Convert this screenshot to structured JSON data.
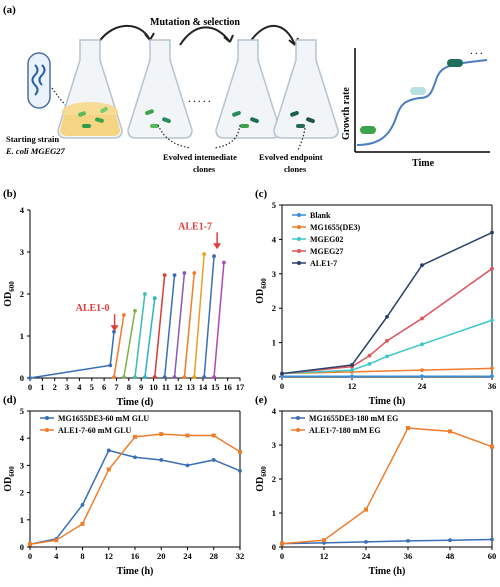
{
  "figure": {
    "panel_a": {
      "label": "(a)",
      "title": "Mutation & selection",
      "starting_strain_line1": "Starting strain",
      "starting_strain_line2": "E. coli MGEG27",
      "evolved_intermediate_line1": "Evolved intemediate",
      "evolved_intermediate_line2": "clones",
      "evolved_endpoint_line1": "Evolved endpoint",
      "evolved_endpoint_line2": "clones",
      "dots": "· · · · ·",
      "inset_ylabel": "Growth rate",
      "inset_xlabel": "Time",
      "inset_dots": "· · ·"
    },
    "colors": {
      "blue": "#3a6fb5",
      "orange": "#ef7d2b",
      "red": "#d93b3b",
      "teal": "#3cbfae",
      "pink": "#e0525a",
      "navy": "#27406d",
      "arrow_red": "#e23b3b"
    }
  },
  "chart_data": [
    {
      "panel": "(b)",
      "type": "line",
      "xlabel": "Time (d)",
      "ylabel": "OD600",
      "xlim": [
        0,
        17
      ],
      "ylim": [
        0,
        4
      ],
      "xticks": [
        0,
        1,
        2,
        3,
        4,
        5,
        6,
        7,
        8,
        9,
        10,
        11,
        12,
        13,
        14,
        15,
        16,
        17
      ],
      "yticks": [
        0,
        1,
        2,
        3,
        4
      ],
      "annotations": [
        {
          "text": "ALE1-0",
          "x": 6.2,
          "y": 1.4
        },
        {
          "text": "ALE1-7",
          "x": 14.5,
          "y": 3.35
        }
      ],
      "series": [
        {
          "color": "#3a6fb5",
          "x": [
            0,
            6.5,
            6.8
          ],
          "y": [
            0,
            0.3,
            1.1
          ]
        },
        {
          "color": "#ef7d2b",
          "x": [
            6.8,
            7.6
          ],
          "y": [
            0.02,
            1.5
          ]
        },
        {
          "color": "#7fb04a",
          "x": [
            7.6,
            8.5
          ],
          "y": [
            0.02,
            1.6
          ]
        },
        {
          "color": "#3cbfae",
          "x": [
            8.5,
            9.3
          ],
          "y": [
            0.02,
            2.0
          ]
        },
        {
          "color": "#2bb3c9",
          "x": [
            9.3,
            10.1
          ],
          "y": [
            0.02,
            1.9
          ]
        },
        {
          "color": "#d93b3b",
          "x": [
            10.1,
            10.9
          ],
          "y": [
            0.02,
            2.45
          ]
        },
        {
          "color": "#3a6fb5",
          "x": [
            10.9,
            11.7
          ],
          "y": [
            0.02,
            2.45
          ]
        },
        {
          "color": "#8a5ab0",
          "x": [
            11.7,
            12.5
          ],
          "y": [
            0.02,
            2.5
          ]
        },
        {
          "color": "#ef7d2b",
          "x": [
            12.5,
            13.3
          ],
          "y": [
            0.02,
            2.5
          ]
        },
        {
          "color": "#e8a020",
          "x": [
            13.3,
            14.1
          ],
          "y": [
            0.02,
            2.95
          ]
        },
        {
          "color": "#3a6fb5",
          "x": [
            14.1,
            14.9
          ],
          "y": [
            0.02,
            2.9
          ]
        },
        {
          "color": "#b04ab0",
          "x": [
            14.9,
            15.7
          ],
          "y": [
            0.02,
            2.75
          ]
        }
      ]
    },
    {
      "panel": "(c)",
      "type": "line",
      "xlabel": "Time (h)",
      "ylabel": "OD600",
      "xlim": [
        0,
        36
      ],
      "ylim": [
        0,
        5
      ],
      "xticks": [
        0,
        12,
        24,
        36
      ],
      "yticks": [
        0,
        1,
        2,
        3,
        4,
        5
      ],
      "series": [
        {
          "name": "Blank",
          "color": "#3a8fd9",
          "x": [
            0,
            12,
            24,
            36
          ],
          "y": [
            0.02,
            0.02,
            0.02,
            0.02
          ]
        },
        {
          "name": "MG1655(DE3)",
          "color": "#ef7d2b",
          "x": [
            0,
            12,
            24,
            36
          ],
          "y": [
            0.1,
            0.15,
            0.2,
            0.25
          ]
        },
        {
          "name": "MGEG02",
          "color": "#3cc8c8",
          "x": [
            0,
            12,
            15,
            18,
            24,
            36
          ],
          "y": [
            0.1,
            0.2,
            0.38,
            0.6,
            0.95,
            1.65
          ]
        },
        {
          "name": "MGEG27",
          "color": "#e0525a",
          "x": [
            0,
            12,
            15,
            18,
            24,
            36
          ],
          "y": [
            0.1,
            0.3,
            0.62,
            1.05,
            1.7,
            3.15
          ]
        },
        {
          "name": "ALE1-7",
          "color": "#27406d",
          "x": [
            0,
            12,
            18,
            24,
            36
          ],
          "y": [
            0.1,
            0.35,
            1.75,
            3.25,
            4.2
          ]
        }
      ]
    },
    {
      "panel": "(d)",
      "type": "line",
      "xlabel": "Time (h)",
      "ylabel": "OD600",
      "xlim": [
        0,
        32
      ],
      "ylim": [
        0,
        5
      ],
      "xticks": [
        0,
        4,
        8,
        12,
        16,
        20,
        24,
        28,
        32
      ],
      "yticks": [
        0,
        1,
        2,
        3,
        4,
        5
      ],
      "series": [
        {
          "name": "MG1655DE3-60 mM GLU",
          "color": "#3a6fb5",
          "x": [
            0,
            4,
            8,
            12,
            16,
            20,
            24,
            28,
            32
          ],
          "y": [
            0.1,
            0.3,
            1.55,
            3.55,
            3.3,
            3.2,
            3.0,
            3.2,
            2.8
          ]
        },
        {
          "name": "ALE1-7-60 mM GLU",
          "color": "#ef7d2b",
          "x": [
            0,
            4,
            8,
            12,
            16,
            20,
            24,
            28,
            32
          ],
          "y": [
            0.1,
            0.25,
            0.85,
            2.85,
            4.05,
            4.15,
            4.1,
            4.1,
            3.5
          ]
        }
      ]
    },
    {
      "panel": "(e)",
      "type": "line",
      "xlabel": "Time (h)",
      "ylabel": "OD600",
      "xlim": [
        0,
        60
      ],
      "ylim": [
        0,
        4
      ],
      "xticks": [
        0,
        12,
        24,
        36,
        48,
        60
      ],
      "xticklabels": [
        "0",
        "12",
        "24",
        "36",
        "48",
        "60"
      ],
      "yticks": [
        0,
        1,
        2,
        3,
        4
      ],
      "series": [
        {
          "name": "MG1655DE3-180 mM EG",
          "color": "#3a6fb5",
          "x": [
            0,
            12,
            24,
            36,
            48,
            60
          ],
          "y": [
            0.1,
            0.12,
            0.15,
            0.18,
            0.2,
            0.22
          ]
        },
        {
          "name": "ALE1-7-180 mM EG",
          "color": "#ef7d2b",
          "x": [
            0,
            12,
            24,
            36,
            48,
            60
          ],
          "y": [
            0.1,
            0.2,
            1.1,
            3.5,
            3.4,
            2.95
          ]
        }
      ]
    }
  ]
}
